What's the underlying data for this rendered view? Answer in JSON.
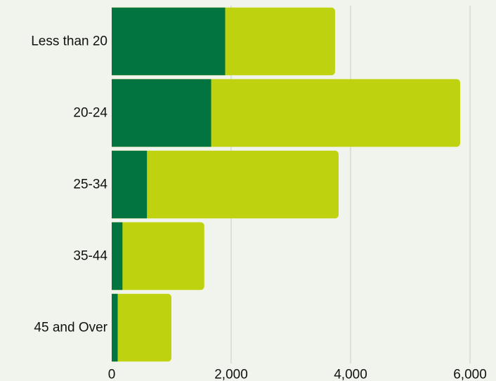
{
  "colors": {
    "background": "#f1f4ec",
    "grid": "#c9cbc4",
    "text": "#111111"
  },
  "chart_data": {
    "type": "bar",
    "orientation": "horizontal",
    "stacked": true,
    "title": "",
    "xlabel": "",
    "ylabel": "",
    "categories": [
      "Less than 20",
      "20-24",
      "25-34",
      "35-44",
      "45 and Over"
    ],
    "series": [
      {
        "color": "#027440",
        "values": [
          1900,
          1665,
          590,
          180,
          100
        ]
      },
      {
        "color": "#bed20f",
        "values": [
          1840,
          4170,
          3210,
          1370,
          900
        ]
      }
    ],
    "xlim": [
      0,
      6000
    ],
    "x_ticks": [
      0,
      2000,
      4000,
      6000
    ],
    "x_tick_labels": [
      "0",
      "2,000",
      "4,000",
      "6,000"
    ],
    "grid": "vertical",
    "legend": "none"
  }
}
